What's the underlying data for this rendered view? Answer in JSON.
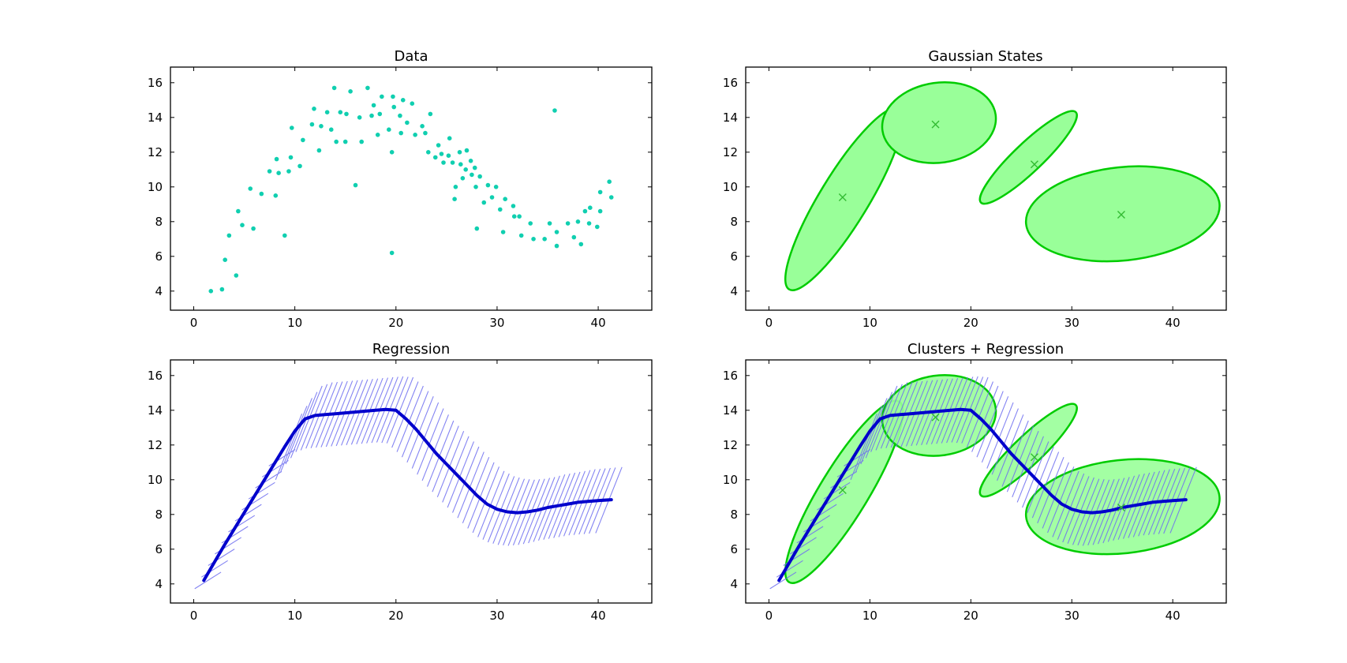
{
  "chart_data": [
    {
      "type": "scatter",
      "title": "Data",
      "xlabel": "",
      "ylabel": "",
      "xlim": [
        -2.3,
        45.3
      ],
      "ylim": [
        2.9,
        16.9
      ],
      "xticks": [
        "0",
        "10",
        "20",
        "30",
        "40"
      ],
      "yticks": [
        "4",
        "6",
        "8",
        "10",
        "12",
        "14",
        "16"
      ],
      "color": "#10cfb0",
      "points": [
        [
          1.7,
          4.0
        ],
        [
          2.8,
          4.1
        ],
        [
          3.1,
          5.8
        ],
        [
          3.5,
          7.2
        ],
        [
          4.2,
          4.9
        ],
        [
          4.4,
          8.6
        ],
        [
          4.8,
          7.8
        ],
        [
          5.6,
          9.9
        ],
        [
          5.9,
          7.6
        ],
        [
          6.7,
          9.6
        ],
        [
          7.5,
          10.9
        ],
        [
          8.1,
          9.5
        ],
        [
          8.2,
          11.6
        ],
        [
          8.4,
          10.8
        ],
        [
          9.0,
          7.2
        ],
        [
          9.4,
          10.9
        ],
        [
          9.6,
          11.7
        ],
        [
          9.7,
          13.4
        ],
        [
          10.5,
          11.2
        ],
        [
          10.8,
          12.7
        ],
        [
          11.7,
          13.6
        ],
        [
          11.9,
          14.5
        ],
        [
          12.4,
          12.1
        ],
        [
          12.6,
          13.5
        ],
        [
          13.2,
          14.3
        ],
        [
          13.6,
          13.3
        ],
        [
          13.9,
          15.7
        ],
        [
          14.1,
          12.6
        ],
        [
          14.5,
          14.3
        ],
        [
          15.0,
          12.6
        ],
        [
          15.1,
          14.2
        ],
        [
          15.5,
          15.5
        ],
        [
          16.0,
          10.1
        ],
        [
          16.4,
          14.0
        ],
        [
          16.6,
          12.6
        ],
        [
          17.2,
          15.7
        ],
        [
          17.6,
          14.1
        ],
        [
          17.8,
          14.7
        ],
        [
          18.2,
          13.0
        ],
        [
          18.4,
          14.2
        ],
        [
          18.6,
          15.2
        ],
        [
          19.3,
          13.3
        ],
        [
          19.6,
          12.0
        ],
        [
          19.7,
          15.2
        ],
        [
          19.8,
          14.6
        ],
        [
          19.6,
          6.2
        ],
        [
          20.4,
          14.1
        ],
        [
          20.5,
          13.1
        ],
        [
          20.7,
          15.0
        ],
        [
          21.1,
          13.7
        ],
        [
          21.6,
          14.8
        ],
        [
          21.9,
          13.0
        ],
        [
          22.6,
          13.5
        ],
        [
          22.9,
          13.1
        ],
        [
          23.2,
          12.0
        ],
        [
          23.4,
          14.2
        ],
        [
          23.9,
          11.7
        ],
        [
          24.2,
          12.4
        ],
        [
          24.5,
          11.9
        ],
        [
          24.7,
          11.4
        ],
        [
          25.2,
          11.8
        ],
        [
          25.3,
          12.8
        ],
        [
          25.6,
          11.4
        ],
        [
          25.8,
          9.3
        ],
        [
          25.9,
          10.0
        ],
        [
          26.3,
          12.0
        ],
        [
          26.4,
          11.3
        ],
        [
          26.6,
          10.5
        ],
        [
          26.9,
          11.0
        ],
        [
          27.0,
          12.1
        ],
        [
          27.4,
          11.5
        ],
        [
          27.5,
          10.7
        ],
        [
          27.8,
          11.1
        ],
        [
          27.9,
          10.0
        ],
        [
          28.0,
          7.6
        ],
        [
          28.3,
          10.6
        ],
        [
          28.7,
          9.1
        ],
        [
          29.1,
          10.1
        ],
        [
          29.5,
          9.4
        ],
        [
          29.9,
          10.0
        ],
        [
          30.3,
          8.7
        ],
        [
          30.6,
          7.4
        ],
        [
          30.8,
          9.3
        ],
        [
          31.6,
          8.9
        ],
        [
          31.7,
          8.3
        ],
        [
          32.2,
          8.3
        ],
        [
          32.4,
          7.2
        ],
        [
          33.3,
          7.9
        ],
        [
          33.6,
          7.0
        ],
        [
          34.7,
          7.0
        ],
        [
          35.2,
          7.9
        ],
        [
          35.7,
          14.4
        ],
        [
          35.9,
          6.6
        ],
        [
          35.9,
          7.4
        ],
        [
          37.0,
          7.9
        ],
        [
          37.6,
          7.1
        ],
        [
          38.0,
          8.0
        ],
        [
          38.3,
          6.7
        ],
        [
          38.7,
          8.6
        ],
        [
          39.1,
          7.9
        ],
        [
          39.2,
          8.8
        ],
        [
          39.9,
          7.7
        ],
        [
          40.2,
          8.6
        ],
        [
          40.2,
          9.7
        ],
        [
          41.1,
          10.3
        ],
        [
          41.3,
          9.4
        ]
      ]
    },
    {
      "type": "ellipse",
      "title": "Gaussian States",
      "xlabel": "",
      "ylabel": "",
      "xlim": [
        -2.3,
        45.3
      ],
      "ylim": [
        2.9,
        16.9
      ],
      "xticks": [
        "0",
        "10",
        "20",
        "30",
        "40"
      ],
      "yticks": [
        "4",
        "6",
        "8",
        "10",
        "12",
        "14",
        "16"
      ],
      "fill_color": "#99ff99",
      "edge_color": "#00cc00",
      "center_color": "#33bb33",
      "states": [
        {
          "mean": [
            7.3,
            9.4
          ],
          "outline": [
            [
              2.0,
              4.1
            ],
            [
              12.9,
              14.5
            ]
          ]
        },
        {
          "mean": [
            16.5,
            13.6
          ],
          "outline": [
            [
              12.0,
              11.5
            ],
            [
              21.7,
              15.9
            ]
          ]
        },
        {
          "mean": [
            26.3,
            11.3
          ],
          "outline": [
            [
              21.0,
              9.1
            ],
            [
              30.4,
              14.3
            ]
          ]
        },
        {
          "mean": [
            34.9,
            8.4
          ],
          "outline": [
            [
              25.8,
              5.6
            ],
            [
              44.3,
              11.3
            ]
          ]
        }
      ]
    },
    {
      "type": "line",
      "title": "Regression",
      "xlabel": "",
      "ylabel": "",
      "xlim": [
        -2.3,
        45.3
      ],
      "ylim": [
        2.9,
        16.9
      ],
      "xticks": [
        "0",
        "10",
        "20",
        "30",
        "40"
      ],
      "yticks": [
        "4",
        "6",
        "8",
        "10",
        "12",
        "14",
        "16"
      ],
      "line_color": "#0000cc",
      "band_color": "#6f6ff0",
      "series": [
        {
          "name": "regression",
          "x": [
            1.0,
            3,
            5,
            7,
            9,
            10,
            11,
            12,
            13,
            14,
            15,
            16,
            17,
            18,
            19,
            20,
            21,
            22,
            23,
            24,
            25,
            26,
            27,
            28,
            29,
            30,
            31,
            32,
            33,
            34,
            35,
            36,
            37,
            38,
            39,
            40,
            41.3
          ],
          "y": [
            4.2,
            6.2,
            8.1,
            10.0,
            11.9,
            12.8,
            13.5,
            13.7,
            13.75,
            13.8,
            13.85,
            13.9,
            13.95,
            14.0,
            14.05,
            14.0,
            13.5,
            12.9,
            12.2,
            11.5,
            10.9,
            10.3,
            9.7,
            9.1,
            8.6,
            8.3,
            8.15,
            8.1,
            8.15,
            8.25,
            8.4,
            8.5,
            8.6,
            8.7,
            8.75,
            8.8,
            8.85
          ]
        }
      ],
      "band": {
        "half_width": 1.9,
        "shift": 2.6
      }
    },
    {
      "type": "combined",
      "title": "Clusters + Regression",
      "xlabel": "",
      "ylabel": "",
      "xlim": [
        -2.3,
        45.3
      ],
      "ylim": [
        2.9,
        16.9
      ],
      "xticks": [
        "0",
        "10",
        "20",
        "30",
        "40"
      ],
      "yticks": [
        "4",
        "6",
        "8",
        "10",
        "12",
        "14",
        "16"
      ],
      "note": "overlay of Gaussian States and Regression"
    }
  ]
}
